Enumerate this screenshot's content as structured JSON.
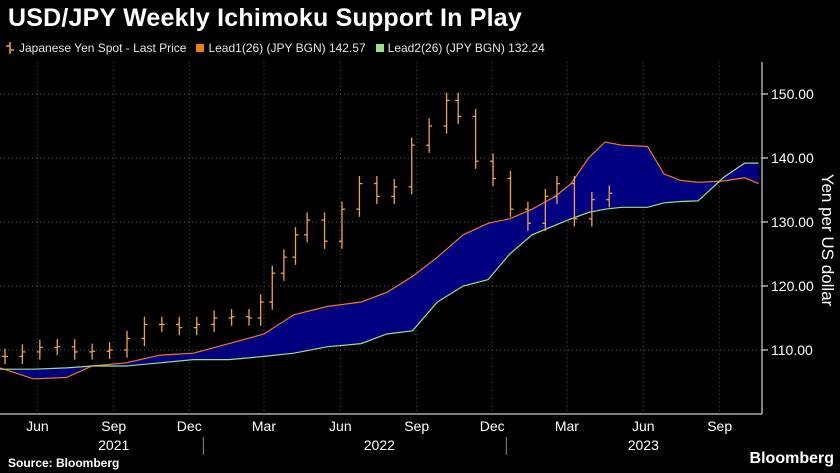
{
  "title": "USD/JPY Weekly Ichimoku Support In Play",
  "source": "Source: Bloomberg",
  "brand": "Bloomberg",
  "legend": {
    "items": [
      {
        "label": "Japanese Yen Spot - Last Price",
        "color": "#f0a150",
        "icon": "bar-icon"
      },
      {
        "label": "Lead1(26) (JPY BGN) 142.57",
        "color": "#f07a17"
      },
      {
        "label": "Lead2(26) (JPY BGN) 132.24",
        "color": "#9be08a"
      }
    ]
  },
  "chart_data": {
    "type": "line",
    "ylabel": "Yen per US dollar",
    "ylim": [
      100,
      155
    ],
    "yticks": [
      110,
      120,
      130,
      140,
      150
    ],
    "ytick_labels": [
      "110.00",
      "120.00",
      "130.00",
      "140.00",
      "150.00"
    ],
    "xlim": [
      "2021-05-01",
      "2023-11-05"
    ],
    "xticks": [
      {
        "date": "2021-06-15",
        "label": "Jun"
      },
      {
        "date": "2021-09-15",
        "label": "Sep"
      },
      {
        "date": "2021-12-15",
        "label": "Dec"
      },
      {
        "date": "2022-03-15",
        "label": "Mar"
      },
      {
        "date": "2022-06-15",
        "label": "Jun"
      },
      {
        "date": "2022-09-15",
        "label": "Sep"
      },
      {
        "date": "2022-12-15",
        "label": "Dec"
      },
      {
        "date": "2023-03-15",
        "label": "Mar"
      },
      {
        "date": "2023-06-15",
        "label": "Jun"
      },
      {
        "date": "2023-09-15",
        "label": "Sep"
      }
    ],
    "year_labels": [
      {
        "date": "2021-09-15",
        "label": "2021"
      },
      {
        "date": "2022-08-01",
        "label": "2022"
      },
      {
        "date": "2023-06-15",
        "label": "2023"
      }
    ],
    "year_separators": [
      "2022-01-01",
      "2023-01-01"
    ],
    "cloud_color": "#000080",
    "series": [
      {
        "name": "Japanese Yen Spot - Last Price",
        "style": "ohlc",
        "color": "#f0a150",
        "x": [
          "2021-05-07",
          "2021-05-28",
          "2021-06-18",
          "2021-07-09",
          "2021-07-30",
          "2021-08-20",
          "2021-09-10",
          "2021-10-01",
          "2021-10-22",
          "2021-11-12",
          "2021-12-03",
          "2021-12-24",
          "2022-01-14",
          "2022-02-04",
          "2022-02-25",
          "2022-03-11",
          "2022-03-25",
          "2022-04-08",
          "2022-04-22",
          "2022-05-06",
          "2022-05-27",
          "2022-06-17",
          "2022-07-08",
          "2022-07-29",
          "2022-08-19",
          "2022-09-09",
          "2022-09-30",
          "2022-10-21",
          "2022-11-04",
          "2022-11-25",
          "2022-12-16",
          "2023-01-06",
          "2023-01-27",
          "2023-02-17",
          "2023-03-03",
          "2023-03-24",
          "2023-04-14",
          "2023-05-05"
        ],
        "y": [
          109.0,
          109.7,
          110.4,
          110.5,
          109.7,
          109.8,
          110.0,
          111.8,
          114.0,
          114.0,
          113.5,
          114.0,
          115.0,
          115.2,
          115.0,
          117.5,
          122.0,
          124.5,
          128.0,
          130.3,
          127.0,
          132.0,
          136.0,
          134.0,
          135.5,
          142.0,
          145.0,
          149.0,
          146.5,
          139.5,
          136.8,
          132.0,
          129.8,
          134.0,
          136.0,
          130.5,
          133.5,
          134.5
        ]
      },
      {
        "name": "Lead1(26) (JPY BGN) 142.57",
        "style": "line",
        "color": "#f07a17",
        "x": [
          "2021-05-01",
          "2021-06-10",
          "2021-07-20",
          "2021-08-20",
          "2021-09-30",
          "2021-11-10",
          "2021-12-20",
          "2022-02-01",
          "2022-03-15",
          "2022-04-20",
          "2022-05-30",
          "2022-07-10",
          "2022-08-10",
          "2022-09-10",
          "2022-10-10",
          "2022-11-10",
          "2022-12-10",
          "2023-01-05",
          "2023-02-01",
          "2023-03-01",
          "2023-03-20",
          "2023-04-10",
          "2023-04-30",
          "2023-05-20",
          "2023-06-20",
          "2023-07-10",
          "2023-07-30",
          "2023-08-20",
          "2023-09-20",
          "2023-10-15",
          "2023-11-01"
        ],
        "y": [
          107.2,
          105.5,
          105.7,
          107.5,
          108.0,
          109.2,
          109.5,
          111.0,
          112.5,
          115.5,
          116.8,
          117.5,
          119.0,
          121.5,
          124.5,
          128.0,
          129.8,
          130.5,
          132.0,
          134.0,
          136.0,
          140.0,
          142.5,
          142.0,
          141.8,
          137.5,
          136.5,
          136.2,
          136.4,
          136.9,
          136.0
        ]
      },
      {
        "name": "Lead2(26) (JPY BGN) 132.24",
        "style": "line",
        "color": "#9be08a",
        "x": [
          "2021-05-01",
          "2021-06-10",
          "2021-07-20",
          "2021-08-20",
          "2021-09-30",
          "2021-11-10",
          "2021-12-20",
          "2022-02-01",
          "2022-03-15",
          "2022-04-20",
          "2022-05-30",
          "2022-07-10",
          "2022-08-10",
          "2022-09-10",
          "2022-10-10",
          "2022-11-10",
          "2022-12-10",
          "2023-01-05",
          "2023-02-01",
          "2023-03-01",
          "2023-03-20",
          "2023-04-10",
          "2023-04-30",
          "2023-05-20",
          "2023-06-20",
          "2023-07-10",
          "2023-07-30",
          "2023-08-20",
          "2023-09-20",
          "2023-10-15",
          "2023-11-01"
        ],
        "y": [
          107.0,
          107.0,
          107.2,
          107.5,
          107.5,
          108.0,
          108.5,
          108.5,
          109.0,
          109.5,
          110.5,
          111.0,
          112.5,
          113.0,
          117.5,
          120.0,
          121.0,
          125.0,
          128.0,
          129.5,
          130.5,
          131.5,
          132.0,
          132.3,
          132.3,
          133.0,
          133.2,
          133.3,
          137.0,
          139.2,
          139.2
        ]
      }
    ]
  }
}
